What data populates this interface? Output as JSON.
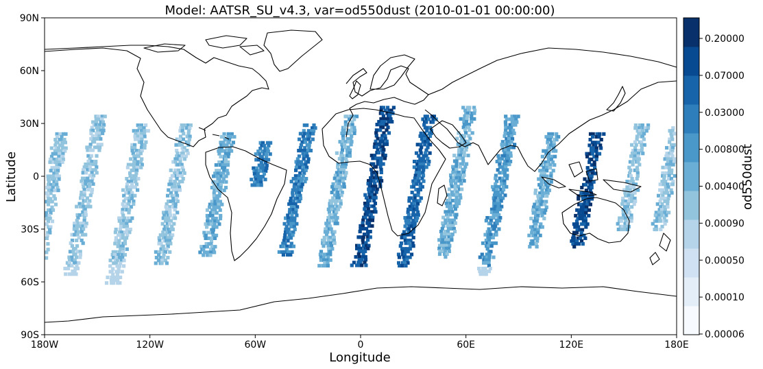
{
  "chart_data": {
    "type": "heatmap",
    "title": "Model: AATSR_SU_v4.3, var=od550dust (2010-01-01 00:00:00)",
    "xlabel": "Longitude",
    "ylabel": "Latitude",
    "xlim": [
      -180,
      180
    ],
    "ylim": [
      -90,
      90
    ],
    "x_ticks": [
      {
        "value": -180,
        "label": "180W"
      },
      {
        "value": -120,
        "label": "120W"
      },
      {
        "value": -60,
        "label": "60W"
      },
      {
        "value": 0,
        "label": "0"
      },
      {
        "value": 60,
        "label": "60E"
      },
      {
        "value": 120,
        "label": "120E"
      },
      {
        "value": 180,
        "label": "180E"
      }
    ],
    "y_ticks": [
      {
        "value": -90,
        "label": "90S"
      },
      {
        "value": -60,
        "label": "60S"
      },
      {
        "value": -30,
        "label": "30S"
      },
      {
        "value": 0,
        "label": "0"
      },
      {
        "value": 30,
        "label": "30N"
      },
      {
        "value": 60,
        "label": "60N"
      },
      {
        "value": 90,
        "label": "90N"
      }
    ],
    "colorbar": {
      "label": "od550dust",
      "colormap": "Blues",
      "tick_labels": [
        "0.00006",
        "0.00010",
        "0.00050",
        "0.00090",
        "0.00400",
        "0.00800",
        "0.03000",
        "0.07000",
        "0.20000"
      ],
      "colors": [
        "#f7fbff",
        "#e3eef9",
        "#cfe1f2",
        "#b5d4e9",
        "#93c4de",
        "#6aaed6",
        "#4a98c9",
        "#2e7ebc",
        "#1764ab",
        "#084a91",
        "#08306b"
      ]
    },
    "series": [
      {
        "lon": -175,
        "lat_range": [
          -55,
          25
        ],
        "level": 4
      },
      {
        "lon": -155,
        "lat_range": [
          -55,
          35
        ],
        "level": 4
      },
      {
        "lon": -130,
        "lat_range": [
          -60,
          30
        ],
        "level": 4
      },
      {
        "lon": -105,
        "lat_range": [
          -50,
          30
        ],
        "level": 4
      },
      {
        "lon": -80,
        "lat_range": [
          -45,
          25
        ],
        "level": 5
      },
      {
        "lon": -58,
        "lat_range": [
          -5,
          20
        ],
        "level": 7
      },
      {
        "lon": -35,
        "lat_range": [
          -45,
          30
        ],
        "level": 7
      },
      {
        "lon": -12,
        "lat_range": [
          -50,
          35
        ],
        "level": 5
      },
      {
        "lon": 8,
        "lat_range": [
          -50,
          40
        ],
        "level": 9
      },
      {
        "lon": 33,
        "lat_range": [
          -50,
          35
        ],
        "level": 8
      },
      {
        "lon": 55,
        "lat_range": [
          -45,
          40
        ],
        "level": 5
      },
      {
        "lon": 80,
        "lat_range": [
          -55,
          35
        ],
        "level": 6
      },
      {
        "lon": 105,
        "lat_range": [
          -40,
          25
        ],
        "level": 5
      },
      {
        "lon": 130,
        "lat_range": [
          -40,
          25
        ],
        "level": 9
      },
      {
        "lon": 155,
        "lat_range": [
          -30,
          30
        ],
        "level": 4
      },
      {
        "lon": 175,
        "lat_range": [
          -30,
          30
        ],
        "level": 4
      }
    ]
  }
}
